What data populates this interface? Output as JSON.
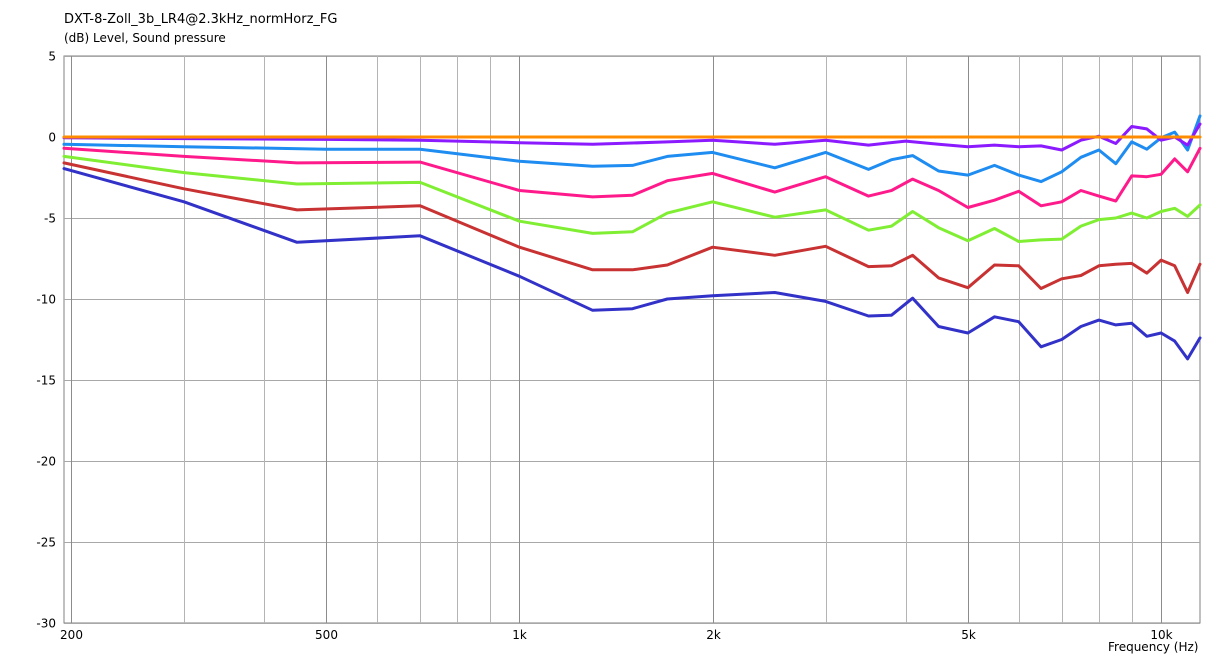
{
  "chart_data": {
    "type": "line",
    "title": "DXT-8-Zoll_3b_LR4@2.3kHz_normHorz_FG",
    "ylabel": "(dB)  Level, Sound pressure",
    "xlabel": "Frequency  (Hz)",
    "x_scale": "log",
    "xlim": [
      195,
      11500
    ],
    "ylim": [
      -30,
      5
    ],
    "grid": true,
    "y_ticks": [
      5,
      0,
      -5,
      -10,
      -15,
      -20,
      -25,
      -30
    ],
    "x_tick_labels": [
      {
        "value": 200,
        "label": "200"
      },
      {
        "value": 500,
        "label": "500"
      },
      {
        "value": 1000,
        "label": "1k"
      },
      {
        "value": 2000,
        "label": "2k"
      },
      {
        "value": 5000,
        "label": "5k"
      },
      {
        "value": 10000,
        "label": "10k"
      }
    ],
    "x_minor_grid": [
      300,
      400,
      600,
      700,
      800,
      900,
      3000,
      4000,
      6000,
      7000,
      8000,
      9000
    ],
    "series": [
      {
        "color": "#ff8c00",
        "points": [
          [
            195,
            0
          ],
          [
            11500,
            0
          ]
        ]
      },
      {
        "color": "#8b1aff",
        "points": [
          [
            195,
            -0.05
          ],
          [
            300,
            -0.1
          ],
          [
            500,
            -0.15
          ],
          [
            700,
            -0.2
          ],
          [
            1000,
            -0.35
          ],
          [
            1300,
            -0.45
          ],
          [
            1700,
            -0.3
          ],
          [
            2000,
            -0.2
          ],
          [
            2500,
            -0.45
          ],
          [
            3000,
            -0.2
          ],
          [
            3500,
            -0.5
          ],
          [
            4000,
            -0.25
          ],
          [
            4500,
            -0.45
          ],
          [
            5000,
            -0.6
          ],
          [
            5500,
            -0.5
          ],
          [
            6000,
            -0.6
          ],
          [
            6500,
            -0.55
          ],
          [
            7000,
            -0.8
          ],
          [
            7500,
            -0.2
          ],
          [
            8000,
            0.05
          ],
          [
            8500,
            -0.4
          ],
          [
            9000,
            0.65
          ],
          [
            9500,
            0.5
          ],
          [
            10000,
            -0.2
          ],
          [
            10500,
            0.0
          ],
          [
            11000,
            -0.5
          ],
          [
            11500,
            0.8
          ]
        ]
      },
      {
        "color": "#1e8cf0",
        "points": [
          [
            195,
            -0.45
          ],
          [
            300,
            -0.6
          ],
          [
            500,
            -0.75
          ],
          [
            700,
            -0.75
          ],
          [
            1000,
            -1.5
          ],
          [
            1300,
            -1.8
          ],
          [
            1500,
            -1.75
          ],
          [
            1700,
            -1.2
          ],
          [
            2000,
            -0.95
          ],
          [
            2500,
            -1.9
          ],
          [
            3000,
            -0.95
          ],
          [
            3500,
            -2.0
          ],
          [
            3800,
            -1.4
          ],
          [
            4100,
            -1.15
          ],
          [
            4500,
            -2.1
          ],
          [
            5000,
            -2.35
          ],
          [
            5500,
            -1.75
          ],
          [
            6000,
            -2.35
          ],
          [
            6500,
            -2.75
          ],
          [
            7000,
            -2.15
          ],
          [
            7500,
            -1.25
          ],
          [
            8000,
            -0.8
          ],
          [
            8500,
            -1.65
          ],
          [
            9000,
            -0.3
          ],
          [
            9500,
            -0.75
          ],
          [
            10000,
            -0.05
          ],
          [
            10500,
            0.3
          ],
          [
            11000,
            -0.8
          ],
          [
            11500,
            1.3
          ]
        ]
      },
      {
        "color": "#ff1a8c",
        "points": [
          [
            195,
            -0.7
          ],
          [
            300,
            -1.2
          ],
          [
            450,
            -1.6
          ],
          [
            700,
            -1.55
          ],
          [
            1000,
            -3.3
          ],
          [
            1300,
            -3.7
          ],
          [
            1500,
            -3.6
          ],
          [
            1700,
            -2.7
          ],
          [
            2000,
            -2.25
          ],
          [
            2500,
            -3.4
          ],
          [
            3000,
            -2.45
          ],
          [
            3500,
            -3.65
          ],
          [
            3800,
            -3.3
          ],
          [
            4100,
            -2.6
          ],
          [
            4500,
            -3.3
          ],
          [
            5000,
            -4.35
          ],
          [
            5500,
            -3.9
          ],
          [
            6000,
            -3.35
          ],
          [
            6500,
            -4.25
          ],
          [
            7000,
            -4.0
          ],
          [
            7500,
            -3.3
          ],
          [
            8000,
            -3.65
          ],
          [
            8500,
            -3.95
          ],
          [
            9000,
            -2.4
          ],
          [
            9500,
            -2.45
          ],
          [
            10000,
            -2.3
          ],
          [
            10500,
            -1.35
          ],
          [
            11000,
            -2.15
          ],
          [
            11500,
            -0.7
          ]
        ]
      },
      {
        "color": "#80ee33",
        "points": [
          [
            195,
            -1.2
          ],
          [
            300,
            -2.2
          ],
          [
            450,
            -2.9
          ],
          [
            700,
            -2.8
          ],
          [
            1000,
            -5.2
          ],
          [
            1300,
            -5.95
          ],
          [
            1500,
            -5.85
          ],
          [
            1700,
            -4.7
          ],
          [
            2000,
            -4.0
          ],
          [
            2500,
            -4.95
          ],
          [
            3000,
            -4.5
          ],
          [
            3500,
            -5.75
          ],
          [
            3800,
            -5.5
          ],
          [
            4100,
            -4.6
          ],
          [
            4500,
            -5.6
          ],
          [
            5000,
            -6.4
          ],
          [
            5500,
            -5.65
          ],
          [
            6000,
            -6.45
          ],
          [
            6500,
            -6.35
          ],
          [
            7000,
            -6.3
          ],
          [
            7500,
            -5.5
          ],
          [
            8000,
            -5.1
          ],
          [
            8500,
            -5.0
          ],
          [
            9000,
            -4.7
          ],
          [
            9500,
            -5.0
          ],
          [
            10000,
            -4.6
          ],
          [
            10500,
            -4.4
          ],
          [
            11000,
            -4.9
          ],
          [
            11500,
            -4.2
          ]
        ]
      },
      {
        "color": "#c83232",
        "points": [
          [
            195,
            -1.6
          ],
          [
            300,
            -3.2
          ],
          [
            450,
            -4.5
          ],
          [
            700,
            -4.25
          ],
          [
            1000,
            -6.8
          ],
          [
            1300,
            -8.2
          ],
          [
            1500,
            -8.2
          ],
          [
            1700,
            -7.9
          ],
          [
            2000,
            -6.8
          ],
          [
            2500,
            -7.3
          ],
          [
            3000,
            -6.75
          ],
          [
            3500,
            -8.0
          ],
          [
            3800,
            -7.95
          ],
          [
            4100,
            -7.3
          ],
          [
            4500,
            -8.7
          ],
          [
            5000,
            -9.3
          ],
          [
            5500,
            -7.9
          ],
          [
            6000,
            -7.95
          ],
          [
            6500,
            -9.35
          ],
          [
            7000,
            -8.75
          ],
          [
            7500,
            -8.55
          ],
          [
            8000,
            -7.95
          ],
          [
            8500,
            -7.85
          ],
          [
            9000,
            -7.8
          ],
          [
            9500,
            -8.4
          ],
          [
            10000,
            -7.6
          ],
          [
            10500,
            -7.95
          ],
          [
            11000,
            -9.6
          ],
          [
            11500,
            -7.85
          ]
        ]
      },
      {
        "color": "#3232c8",
        "points": [
          [
            195,
            -1.95
          ],
          [
            300,
            -4.0
          ],
          [
            450,
            -6.5
          ],
          [
            700,
            -6.1
          ],
          [
            1000,
            -8.6
          ],
          [
            1300,
            -10.7
          ],
          [
            1500,
            -10.6
          ],
          [
            1700,
            -10.0
          ],
          [
            2000,
            -9.8
          ],
          [
            2500,
            -9.6
          ],
          [
            3000,
            -10.15
          ],
          [
            3500,
            -11.05
          ],
          [
            3800,
            -11.0
          ],
          [
            4100,
            -9.95
          ],
          [
            4500,
            -11.7
          ],
          [
            5000,
            -12.1
          ],
          [
            5500,
            -11.1
          ],
          [
            6000,
            -11.4
          ],
          [
            6500,
            -12.95
          ],
          [
            7000,
            -12.5
          ],
          [
            7500,
            -11.7
          ],
          [
            8000,
            -11.3
          ],
          [
            8500,
            -11.6
          ],
          [
            9000,
            -11.5
          ],
          [
            9500,
            -12.3
          ],
          [
            10000,
            -12.1
          ],
          [
            10500,
            -12.6
          ],
          [
            11000,
            -13.7
          ],
          [
            11500,
            -12.4
          ]
        ]
      }
    ]
  }
}
